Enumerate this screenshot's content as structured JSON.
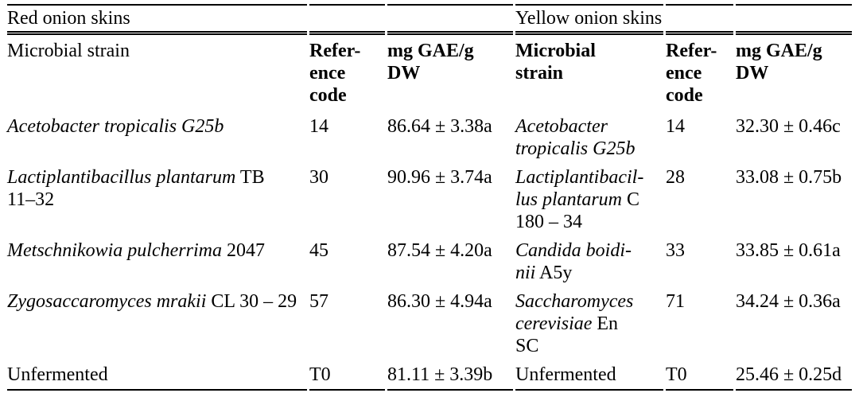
{
  "table": {
    "left_section_title": "Red onion skins",
    "right_section_title": "Yellow onion skins",
    "headers": {
      "red_strain": "Microbial strain",
      "red_code": "Refer-\nence\ncode",
      "red_value": "mg GAE/g\nDW",
      "yellow_strain": "Microbial\nstrain",
      "yellow_code": "Refer-\nence\ncode",
      "yellow_value": "mg GAE/g\nDW"
    },
    "unit_label": "mg GAE/g DW",
    "rows": [
      {
        "red_strain": [
          {
            "t": "Acetobacter tropicalis G25b",
            "i": true
          }
        ],
        "red_code": "14",
        "red_value": "86.64 ± 3.38a",
        "yellow_strain": [
          {
            "t": "Acetobacter\ntropicalis G25b",
            "i": true
          }
        ],
        "yellow_code": "14",
        "yellow_value": "32.30 ± 0.46c"
      },
      {
        "red_strain": [
          {
            "t": "Lactiplantibacillus plantarum",
            "i": true
          },
          {
            "t": " TB\n11–32",
            "i": false
          }
        ],
        "red_code": "30",
        "red_value": "90.96 ± 3.74a",
        "yellow_strain": [
          {
            "t": "Lactiplantibacil-\nlus plantarum",
            "i": true
          },
          {
            "t": " C\n180 – 34",
            "i": false
          }
        ],
        "yellow_code": "28",
        "yellow_value": "33.08 ± 0.75b"
      },
      {
        "red_strain": [
          {
            "t": "Metschnikowia pulcherrima",
            "i": true
          },
          {
            "t": " 2047",
            "i": false
          }
        ],
        "red_code": "45",
        "red_value": "87.54 ± 4.20a",
        "yellow_strain": [
          {
            "t": "Candida boidi-\nnii",
            "i": true
          },
          {
            "t": " A5y",
            "i": false
          }
        ],
        "yellow_code": "33",
        "yellow_value": "33.85 ± 0.61a"
      },
      {
        "red_strain": [
          {
            "t": "Zygosaccaromyces mrakii",
            "i": true
          },
          {
            "t": " CL 30 – 29",
            "i": false
          }
        ],
        "red_code": "57",
        "red_value": "86.30 ± 4.94a",
        "yellow_strain": [
          {
            "t": "Saccharomyces\ncerevisiae",
            "i": true
          },
          {
            "t": " En\nSC",
            "i": false
          }
        ],
        "yellow_code": "71",
        "yellow_value": "34.24 ± 0.36a"
      },
      {
        "red_strain": [
          {
            "t": "Unfermented",
            "i": false
          }
        ],
        "red_code": "T0",
        "red_value": "81.11 ± 3.39b",
        "yellow_strain": [
          {
            "t": "Unfermented",
            "i": false
          }
        ],
        "yellow_code": "T0",
        "yellow_value": "25.46 ± 0.25d"
      }
    ]
  }
}
